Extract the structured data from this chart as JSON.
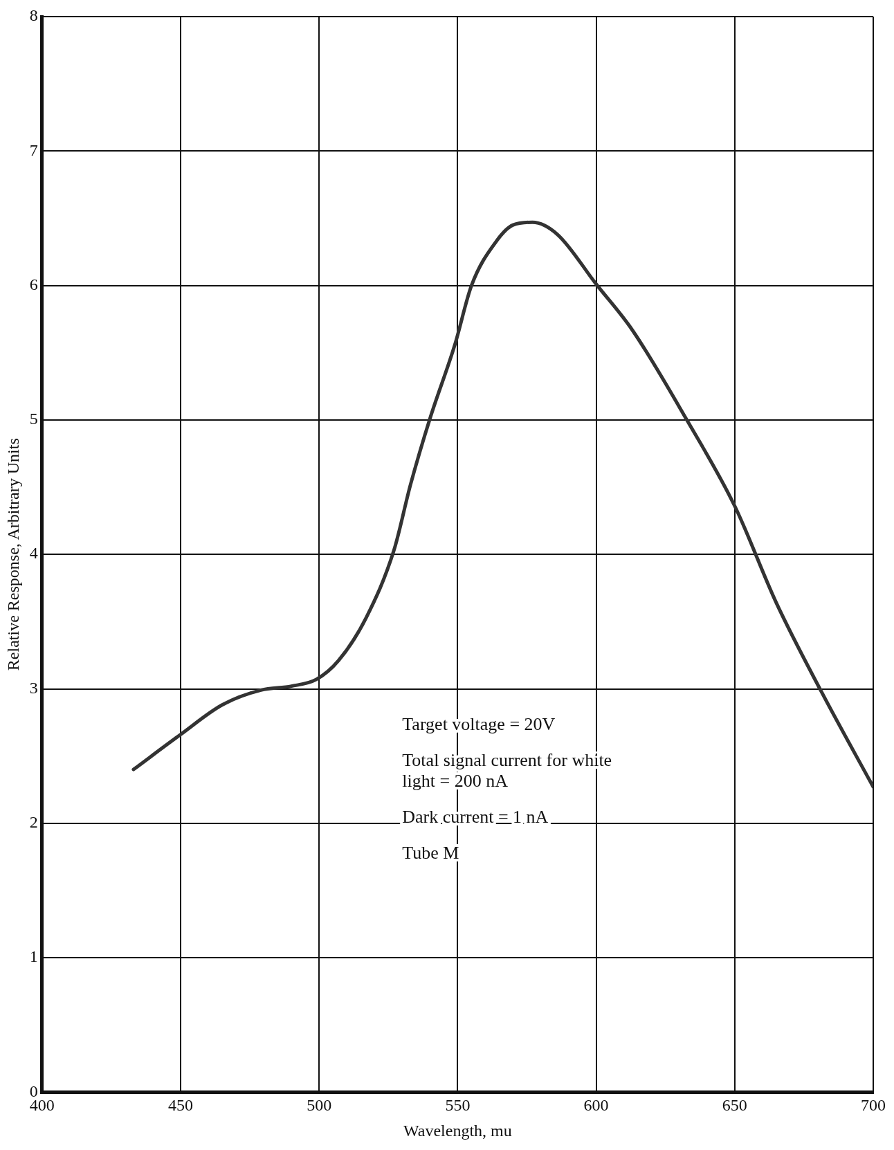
{
  "chart_data": {
    "type": "line",
    "xlabel": "Wavelength, mu",
    "ylabel": "Relative Response, Arbitrary Units",
    "x": [
      433,
      450,
      465,
      479,
      490,
      499,
      507,
      517,
      527,
      533,
      540,
      549,
      555,
      564,
      570,
      577,
      586,
      600,
      613,
      633,
      650,
      665,
      681,
      700
    ],
    "series": [
      {
        "color": "#333333",
        "values": [
          2.4,
          2.66,
          2.88,
          2.99,
          3.02,
          3.07,
          3.21,
          3.53,
          4.03,
          4.52,
          5.01,
          5.56,
          6.0,
          6.33,
          6.45,
          6.47,
          6.38,
          6.01,
          5.67,
          4.99,
          4.36,
          3.64,
          2.99,
          2.27
        ]
      }
    ],
    "xlim": [
      400,
      700
    ],
    "xticks": [
      400,
      450,
      500,
      550,
      600,
      650,
      700
    ],
    "ylim": [
      0,
      8
    ],
    "yticks": [
      0,
      1,
      2,
      3,
      4,
      5,
      6,
      7,
      8
    ],
    "grid": true,
    "legend": false,
    "marker": "none",
    "line_style": "solid",
    "annotations": [
      "Target voltage = 20V",
      "Total signal current for white\nlight = 200 nA",
      "Dark current = 1 nA",
      "Tube M"
    ]
  }
}
